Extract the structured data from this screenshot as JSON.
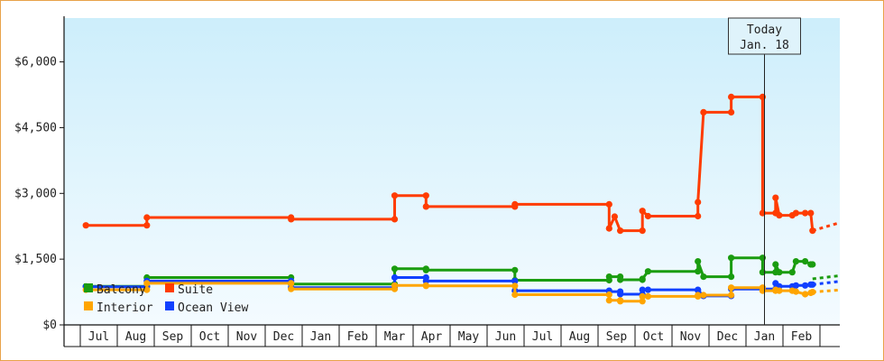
{
  "chart_data": {
    "type": "line",
    "title": "",
    "xlabel": "",
    "ylabel": "",
    "ylim": [
      0,
      7000
    ],
    "y_ticks": [
      "$0",
      "$1,500",
      "$3,000",
      "$4,500",
      "$6,000"
    ],
    "y_tick_values": [
      0,
      1500,
      3000,
      4500,
      6000
    ],
    "x_tick_labels": [
      "Jul",
      "Aug",
      "Sep",
      "Oct",
      "Nov",
      "Dec",
      "Jan",
      "Feb",
      "Mar",
      "Apr",
      "May",
      "Jun",
      "Jul",
      "Aug",
      "Sep",
      "Oct",
      "Nov",
      "Dec",
      "Jan",
      "Feb"
    ],
    "x_domain_months": [
      -0.35,
      19.55
    ],
    "x_unit": "month index (0 = Jul, 1 = Aug, ..., 19 = Feb)",
    "grid": "off",
    "legend_position": "bottom-left",
    "annotation": {
      "line1": "Today",
      "line2": "Jan. 18",
      "x": 18.0
    },
    "colors": {
      "Balcony": "#1a9c0f",
      "Suite": "#ff3c00",
      "Interior": "#ffa500",
      "Ocean View": "#1140ff"
    },
    "series": [
      {
        "name": "Suite",
        "points": [
          [
            -0.35,
            2270
          ],
          [
            1.3,
            2270
          ],
          [
            1.3,
            2450
          ],
          [
            5.2,
            2450
          ],
          [
            5.2,
            2410
          ],
          [
            8.0,
            2410
          ],
          [
            8.0,
            2950
          ],
          [
            8.85,
            2950
          ],
          [
            8.85,
            2700
          ],
          [
            11.25,
            2700
          ],
          [
            11.25,
            2750
          ],
          [
            13.8,
            2750
          ],
          [
            13.8,
            2200
          ],
          [
            13.95,
            2470
          ],
          [
            14.1,
            2150
          ],
          [
            14.7,
            2150
          ],
          [
            14.7,
            2600
          ],
          [
            14.85,
            2480
          ],
          [
            16.2,
            2480
          ],
          [
            16.2,
            2800
          ],
          [
            16.35,
            4850
          ],
          [
            17.1,
            4850
          ],
          [
            17.1,
            5200
          ],
          [
            17.95,
            5200
          ],
          [
            17.95,
            2550
          ],
          [
            18.3,
            2550
          ],
          [
            18.3,
            2900
          ],
          [
            18.4,
            2500
          ],
          [
            18.75,
            2500
          ],
          [
            18.85,
            2550
          ],
          [
            19.1,
            2550
          ],
          [
            19.25,
            2550
          ],
          [
            19.3,
            2150
          ]
        ],
        "projection": [
          [
            19.3,
            2150
          ],
          [
            21.3,
            2650
          ]
        ]
      },
      {
        "name": "Balcony",
        "points": [
          [
            -0.35,
            880
          ],
          [
            1.3,
            880
          ],
          [
            1.3,
            1080
          ],
          [
            5.2,
            1080
          ],
          [
            5.2,
            930
          ],
          [
            8.0,
            930
          ],
          [
            8.0,
            1280
          ],
          [
            8.85,
            1280
          ],
          [
            8.85,
            1250
          ],
          [
            11.25,
            1250
          ],
          [
            11.25,
            1020
          ],
          [
            13.8,
            1020
          ],
          [
            13.8,
            1100
          ],
          [
            14.1,
            1100
          ],
          [
            14.1,
            1030
          ],
          [
            14.7,
            1030
          ],
          [
            14.7,
            1050
          ],
          [
            14.85,
            1220
          ],
          [
            16.2,
            1220
          ],
          [
            16.2,
            1450
          ],
          [
            16.35,
            1100
          ],
          [
            17.1,
            1100
          ],
          [
            17.1,
            1530
          ],
          [
            17.95,
            1530
          ],
          [
            17.95,
            1200
          ],
          [
            18.3,
            1200
          ],
          [
            18.3,
            1380
          ],
          [
            18.4,
            1200
          ],
          [
            18.75,
            1200
          ],
          [
            18.85,
            1450
          ],
          [
            19.1,
            1450
          ],
          [
            19.25,
            1380
          ],
          [
            19.3,
            1380
          ]
        ],
        "projection": [
          [
            19.3,
            1050
          ],
          [
            21.3,
            1250
          ]
        ]
      },
      {
        "name": "Ocean View",
        "points": [
          [
            -0.35,
            870
          ],
          [
            1.3,
            870
          ],
          [
            1.3,
            1000
          ],
          [
            5.2,
            1000
          ],
          [
            5.2,
            850
          ],
          [
            8.0,
            850
          ],
          [
            8.0,
            1080
          ],
          [
            8.85,
            1080
          ],
          [
            8.85,
            1000
          ],
          [
            11.25,
            1000
          ],
          [
            11.25,
            780
          ],
          [
            13.8,
            780
          ],
          [
            13.8,
            760
          ],
          [
            14.1,
            760
          ],
          [
            14.1,
            700
          ],
          [
            14.7,
            700
          ],
          [
            14.7,
            800
          ],
          [
            14.85,
            800
          ],
          [
            16.2,
            800
          ],
          [
            16.2,
            790
          ],
          [
            16.35,
            660
          ],
          [
            17.1,
            660
          ],
          [
            17.1,
            820
          ],
          [
            17.95,
            820
          ],
          [
            17.95,
            820
          ],
          [
            18.3,
            820
          ],
          [
            18.3,
            950
          ],
          [
            18.4,
            880
          ],
          [
            18.75,
            880
          ],
          [
            18.85,
            900
          ],
          [
            19.1,
            900
          ],
          [
            19.25,
            920
          ],
          [
            19.3,
            920
          ]
        ],
        "projection": [
          [
            19.3,
            920
          ],
          [
            21.3,
            1120
          ]
        ]
      },
      {
        "name": "Interior",
        "points": [
          [
            -0.35,
            800
          ],
          [
            1.3,
            800
          ],
          [
            1.3,
            950
          ],
          [
            5.2,
            950
          ],
          [
            5.2,
            820
          ],
          [
            8.0,
            820
          ],
          [
            8.0,
            900
          ],
          [
            8.85,
            900
          ],
          [
            8.85,
            890
          ],
          [
            11.25,
            890
          ],
          [
            11.25,
            690
          ],
          [
            13.8,
            690
          ],
          [
            13.8,
            560
          ],
          [
            14.1,
            560
          ],
          [
            14.1,
            540
          ],
          [
            14.7,
            540
          ],
          [
            14.7,
            650
          ],
          [
            14.85,
            650
          ],
          [
            16.2,
            650
          ],
          [
            16.2,
            680
          ],
          [
            16.35,
            680
          ],
          [
            17.1,
            680
          ],
          [
            17.1,
            850
          ],
          [
            17.95,
            850
          ],
          [
            17.95,
            780
          ],
          [
            18.3,
            780
          ],
          [
            18.3,
            800
          ],
          [
            18.4,
            780
          ],
          [
            18.75,
            780
          ],
          [
            18.85,
            760
          ],
          [
            19.1,
            700
          ],
          [
            19.25,
            730
          ],
          [
            19.3,
            750
          ]
        ],
        "projection": [
          [
            19.3,
            750
          ],
          [
            21.3,
            880
          ]
        ]
      }
    ],
    "legend": [
      {
        "name": "Balcony"
      },
      {
        "name": "Suite"
      },
      {
        "name": "Interior"
      },
      {
        "name": "Ocean View"
      }
    ]
  }
}
